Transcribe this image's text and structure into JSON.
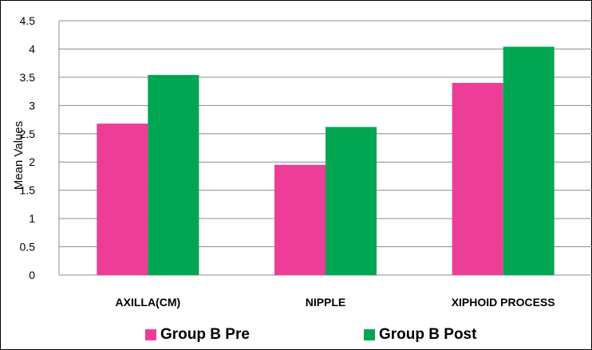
{
  "chart_data": {
    "type": "bar",
    "categories": [
      "AXILLA(CM)",
      "NIPPLE",
      "XIPHOID PROCESS"
    ],
    "series": [
      {
        "name": "Group B Pre",
        "values": [
          2.68,
          1.95,
          3.4
        ],
        "color": "#ee3d97"
      },
      {
        "name": "Group B Post",
        "values": [
          3.54,
          2.62,
          4.04
        ],
        "color": "#00a651"
      }
    ],
    "ylabel": "Mean Values",
    "ylim": [
      0,
      4.5
    ],
    "yticks": [
      "0",
      "0.5",
      "1",
      "1.5",
      "2",
      "2.5",
      "3",
      "3.5",
      "4",
      "4.5"
    ],
    "grid": true,
    "legend_position": "bottom"
  }
}
